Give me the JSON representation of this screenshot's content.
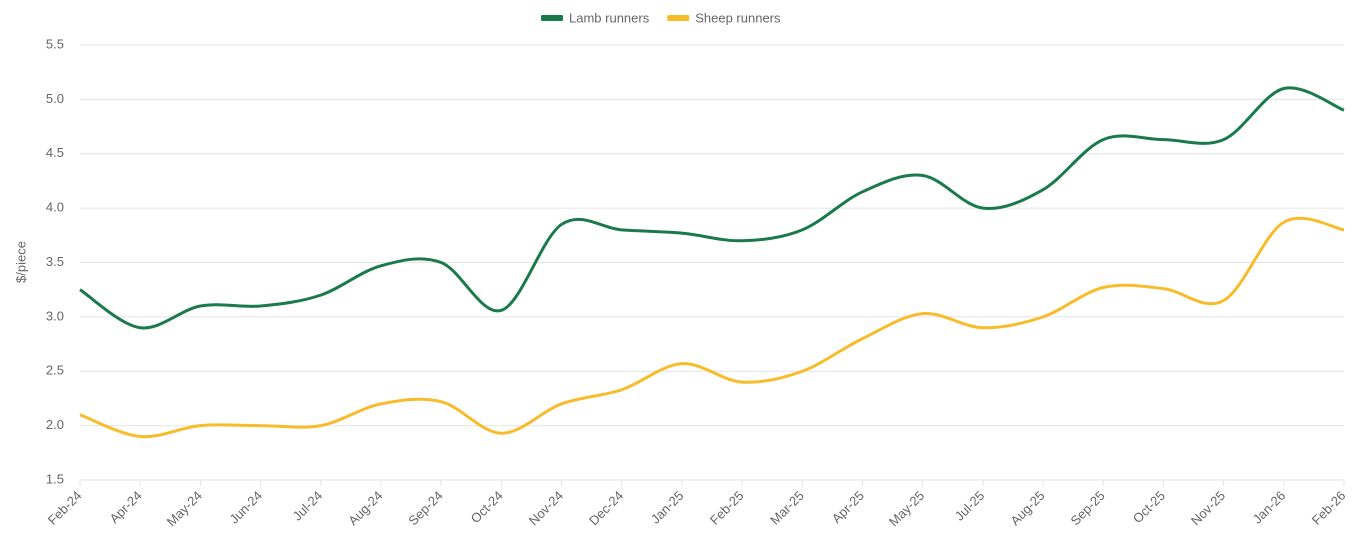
{
  "chart_data": {
    "type": "line",
    "categories": [
      "Feb-24",
      "Apr-24",
      "May-24",
      "Jun-24",
      "Jul-24",
      "Aug-24",
      "Sep-24",
      "Oct-24",
      "Nov-24",
      "Dec-24",
      "Jan-25",
      "Feb-25",
      "Mar-25",
      "Apr-25",
      "May-25",
      "Jul-25",
      "Aug-25",
      "Sep-25",
      "Oct-25",
      "Nov-25",
      "Jan-26",
      "Feb-26"
    ],
    "series": [
      {
        "name": "Lamb runners",
        "color": "#1a7a4c",
        "values": [
          3.25,
          2.9,
          3.1,
          3.1,
          3.2,
          3.47,
          3.5,
          3.06,
          3.85,
          3.8,
          3.77,
          3.7,
          3.8,
          4.15,
          4.3,
          4.0,
          4.17,
          4.63,
          4.63,
          4.63,
          5.1,
          4.9
        ]
      },
      {
        "name": "Sheep runners",
        "color": "#f8bb2a",
        "values": [
          2.1,
          1.9,
          2.0,
          2.0,
          2.0,
          2.2,
          2.22,
          1.93,
          2.2,
          2.33,
          2.57,
          2.4,
          2.5,
          2.8,
          3.03,
          2.9,
          3.0,
          3.27,
          3.26,
          3.15,
          3.87,
          3.8
        ]
      }
    ],
    "y_label": "$/piece",
    "ylim": [
      1.5,
      5.5
    ],
    "yticks": [
      1.5,
      {
        "value": 2,
        "label": "2.0"
      },
      2.5,
      {
        "value": 3,
        "label": "3.0"
      },
      3.5,
      {
        "value": 4,
        "label": "4.0"
      },
      4.5,
      {
        "value": 5,
        "label": "5.0"
      },
      5.5
    ],
    "grid": true,
    "legend": "top"
  }
}
